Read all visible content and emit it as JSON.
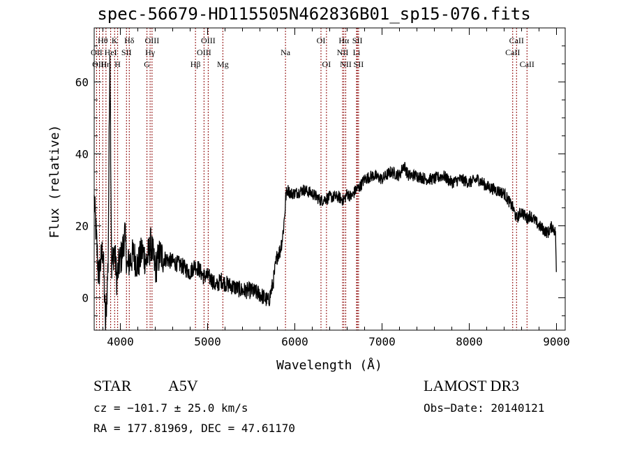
{
  "chart_data": {
    "type": "line",
    "title": "spec-56679-HD115505N462836B01_sp15-076.fits",
    "xlabel": "Wavelength (Å)",
    "ylabel": "Flux (relative)",
    "xlim": [
      3700,
      9100
    ],
    "ylim": [
      -9,
      75
    ],
    "xticks": [
      4000,
      5000,
      6000,
      7000,
      8000,
      9000
    ],
    "yticks": [
      0,
      20,
      40,
      60
    ],
    "line_color": "#000000",
    "marker_color": "#8b0000",
    "series": [
      {
        "name": "flux",
        "x": [
          3700,
          3750,
          3800,
          3830,
          3860,
          3880,
          3900,
          3930,
          3960,
          3990,
          4020,
          4050,
          4080,
          4100,
          4150,
          4200,
          4250,
          4300,
          4350,
          4400,
          4450,
          4500,
          4600,
          4700,
          4800,
          4850,
          4900,
          4950,
          5000,
          5050,
          5100,
          5150,
          5200,
          5300,
          5400,
          5500,
          5600,
          5700,
          5750,
          5780,
          5800,
          5830,
          5860,
          5880,
          5900,
          5920,
          5950,
          6000,
          6100,
          6200,
          6300,
          6400,
          6500,
          6560,
          6600,
          6650,
          6700,
          6750,
          6800,
          6900,
          7000,
          7100,
          7200,
          7250,
          7300,
          7400,
          7500,
          7600,
          7700,
          7800,
          7900,
          8000,
          8100,
          8200,
          8300,
          8400,
          8450,
          8500,
          8542,
          8600,
          8662,
          8700,
          8800,
          8850,
          8900,
          8950,
          8990,
          9000
        ],
        "y": [
          27,
          6,
          14,
          -8,
          10,
          70,
          8,
          14,
          5,
          10,
          12,
          18,
          8,
          10,
          12,
          9,
          13,
          10,
          15,
          8,
          12,
          11,
          10,
          9,
          7,
          9,
          8,
          6,
          6,
          5,
          3,
          5,
          4,
          3,
          2,
          2,
          1,
          -1,
          4,
          9,
          12,
          13,
          17,
          22,
          29,
          30,
          29,
          29,
          30,
          29,
          27,
          28,
          28,
          27,
          29,
          28,
          30,
          31,
          33,
          34,
          33,
          35,
          34,
          37,
          34,
          34,
          33,
          33,
          34,
          32,
          33,
          32,
          33,
          31,
          30,
          29,
          27,
          25,
          22,
          24,
          22,
          23,
          20,
          19,
          18,
          20,
          18,
          3
        ]
      }
    ],
    "lines": [
      {
        "name": "Hθ",
        "wl": 3798,
        "row": 1
      },
      {
        "name": "OII",
        "wl": 3727,
        "row": 2
      },
      {
        "name": "OIII",
        "wl": 3760,
        "row": 3
      },
      {
        "name": "Hη",
        "wl": 3835,
        "row": 3
      },
      {
        "name": "K",
        "wl": 3934,
        "row": 1
      },
      {
        "name": "HeI",
        "wl": 3889,
        "row": 2
      },
      {
        "name": "SII",
        "wl": 4070,
        "row": 2
      },
      {
        "name": "H",
        "wl": 3969,
        "row": 3
      },
      {
        "name": "Hδ",
        "wl": 4102,
        "row": 1
      },
      {
        "name": "OIII",
        "wl": 4363,
        "row": 1
      },
      {
        "name": "Hγ",
        "wl": 4341,
        "row": 2
      },
      {
        "name": "G",
        "wl": 4305,
        "row": 3
      },
      {
        "name": "OIII",
        "wl": 5007,
        "row": 1
      },
      {
        "name": "OIII",
        "wl": 4959,
        "row": 2
      },
      {
        "name": "Hβ",
        "wl": 4861,
        "row": 3
      },
      {
        "name": "Mg",
        "wl": 5175,
        "row": 3
      },
      {
        "name": "Na",
        "wl": 5893,
        "row": 2
      },
      {
        "name": "OI",
        "wl": 6300,
        "row": 1
      },
      {
        "name": "OI",
        "wl": 6363,
        "row": 3
      },
      {
        "name": "Hα",
        "wl": 6563,
        "row": 1
      },
      {
        "name": "NII",
        "wl": 6548,
        "row": 2
      },
      {
        "name": "NII",
        "wl": 6584,
        "row": 3
      },
      {
        "name": "SII",
        "wl": 6717,
        "row": 1
      },
      {
        "name": "Li",
        "wl": 6708,
        "row": 2
      },
      {
        "name": "SII",
        "wl": 6731,
        "row": 3
      },
      {
        "name": "CaII",
        "wl": 8542,
        "row": 1
      },
      {
        "name": "CaII",
        "wl": 8498,
        "row": 2
      },
      {
        "name": "CaII",
        "wl": 8662,
        "row": 3
      }
    ]
  },
  "info": {
    "object_type": "STAR",
    "subclass": "A5V",
    "survey": "LAMOST DR3",
    "cz": "cz = −101.7 ± 25.0 km/s",
    "obs_date": "Obs−Date: 20140121",
    "coords": "RA = 177.81969, DEC =  47.61170"
  }
}
